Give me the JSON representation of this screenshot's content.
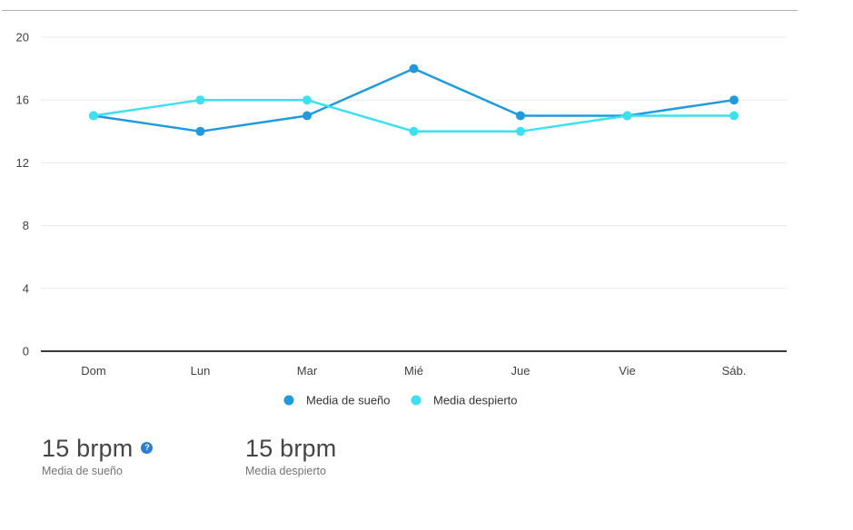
{
  "chart_data": {
    "type": "line",
    "categories": [
      "Dom",
      "Lun",
      "Mar",
      "Mié",
      "Jue",
      "Vie",
      "Sáb."
    ],
    "series": [
      {
        "name": "Media de sueño",
        "color": "#1e9be0",
        "values": [
          15,
          14,
          15,
          18,
          15,
          15,
          16
        ]
      },
      {
        "name": "Media despierto",
        "color": "#3be1f0",
        "values": [
          15,
          16,
          16,
          14,
          14,
          15,
          15
        ]
      }
    ],
    "ylim": [
      0,
      20
    ],
    "yticks": [
      0,
      4,
      8,
      12,
      16,
      20
    ],
    "grid": true,
    "legend_position": "bottom",
    "unit": "brpm"
  },
  "stats": [
    {
      "value": "15 brpm",
      "label": "Media de sueño"
    },
    {
      "value": "15 brpm",
      "label": "Media despierto"
    }
  ],
  "icons": {
    "info": "?"
  },
  "colors": {
    "sleep_series": "#1e9be0",
    "awake_series": "#3be1f0",
    "gridline": "#e8e8e8",
    "axis": "#3a3a3a",
    "tick_text": "#3f3f3f",
    "legend_text": "#333333",
    "info_icon": "#2a7fd4"
  }
}
